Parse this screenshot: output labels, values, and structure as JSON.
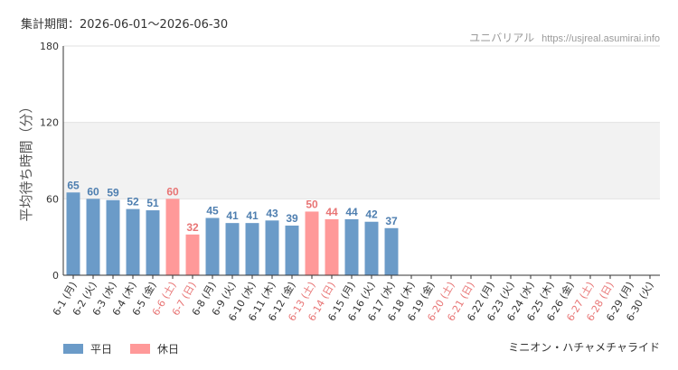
{
  "header": {
    "period": "集計期間：2026-06-01〜2026-06-30",
    "site_name": "ユニバリアル",
    "site_url": "https://usjreal.asumirai.info"
  },
  "footer": {
    "attraction": "ミニオン・ハチャメチャライド"
  },
  "colors": {
    "weekday": "#6b9bc8",
    "holiday": "#ff9999",
    "weekday_label": "#4f7fb0",
    "holiday_label": "#e87575",
    "band": "#f2f2f2",
    "grid": "#e2e2e2",
    "axis": "#333333"
  },
  "chart_data": {
    "type": "bar",
    "ylabel": "平均待ち時間（分）",
    "ylim": [
      0,
      180
    ],
    "yticks": [
      0,
      60,
      120,
      180
    ],
    "shaded_band": [
      60,
      120
    ],
    "legend_placement": "bottom-left",
    "categories": [
      "6-1 (月)",
      "6-2 (火)",
      "6-3 (水)",
      "6-4 (木)",
      "6-5 (金)",
      "6-6 (土)",
      "6-7 (日)",
      "6-8 (月)",
      "6-9 (火)",
      "6-10 (水)",
      "6-11 (木)",
      "6-12 (金)",
      "6-13 (土)",
      "6-14 (日)",
      "6-15 (月)",
      "6-16 (火)",
      "6-17 (水)",
      "6-18 (木)",
      "6-19 (金)",
      "6-20 (土)",
      "6-21 (日)",
      "6-22 (月)",
      "6-23 (火)",
      "6-24 (水)",
      "6-25 (木)",
      "6-26 (金)",
      "6-27 (土)",
      "6-28 (日)",
      "6-29 (月)",
      "6-30 (火)"
    ],
    "holiday": [
      false,
      false,
      false,
      false,
      false,
      true,
      true,
      false,
      false,
      false,
      false,
      false,
      true,
      true,
      false,
      false,
      false,
      false,
      false,
      true,
      true,
      false,
      false,
      false,
      false,
      false,
      true,
      true,
      false,
      false
    ],
    "values": [
      65,
      60,
      59,
      52,
      51,
      60,
      32,
      45,
      41,
      41,
      43,
      39,
      50,
      44,
      44,
      42,
      37,
      null,
      null,
      null,
      null,
      null,
      null,
      null,
      null,
      null,
      null,
      null,
      null,
      null
    ],
    "legend": [
      {
        "label": "平日",
        "kind": "weekday"
      },
      {
        "label": "休日",
        "kind": "holiday"
      }
    ]
  }
}
